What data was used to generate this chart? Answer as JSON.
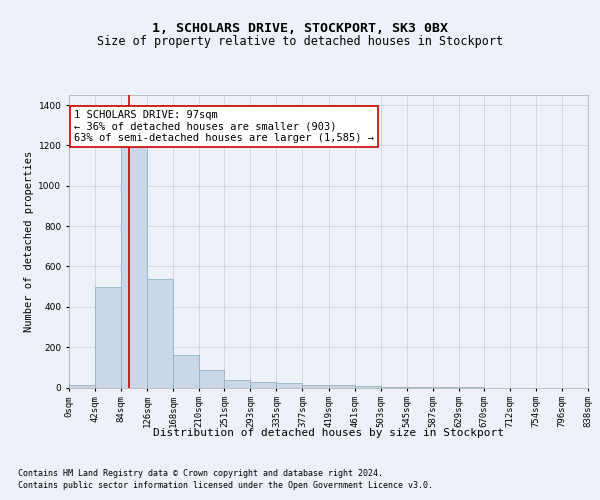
{
  "title": "1, SCHOLARS DRIVE, STOCKPORT, SK3 0BX",
  "subtitle": "Size of property relative to detached houses in Stockport",
  "xlabel": "Distribution of detached houses by size in Stockport",
  "ylabel": "Number of detached properties",
  "footnote1": "Contains HM Land Registry data © Crown copyright and database right 2024.",
  "footnote2": "Contains public sector information licensed under the Open Government Licence v3.0.",
  "annotation_line1": "1 SCHOLARS DRIVE: 97sqm",
  "annotation_line2": "← 36% of detached houses are smaller (903)",
  "annotation_line3": "63% of semi-detached houses are larger (1,585) →",
  "property_size": 97,
  "bar_left_edges": [
    0,
    42,
    84,
    126,
    168,
    210,
    251,
    293,
    335,
    377,
    419,
    461,
    503,
    545,
    587,
    629,
    670,
    712,
    754,
    796
  ],
  "bar_widths": [
    42,
    42,
    42,
    42,
    42,
    41,
    42,
    42,
    42,
    42,
    42,
    42,
    42,
    42,
    42,
    41,
    42,
    42,
    42,
    42
  ],
  "bar_heights": [
    10,
    500,
    1260,
    540,
    160,
    85,
    35,
    28,
    20,
    10,
    10,
    5,
    3,
    2,
    1,
    1,
    0,
    0,
    0,
    0
  ],
  "bar_color": "#c8d8e8",
  "bar_edge_color": "#8aa8b8",
  "red_line_x": 97,
  "red_line_color": "#cc0000",
  "ylim": [
    0,
    1450
  ],
  "yticks": [
    0,
    200,
    400,
    600,
    800,
    1000,
    1200,
    1400
  ],
  "xtick_labels": [
    "0sqm",
    "42sqm",
    "84sqm",
    "126sqm",
    "168sqm",
    "210sqm",
    "251sqm",
    "293sqm",
    "335sqm",
    "377sqm",
    "419sqm",
    "461sqm",
    "503sqm",
    "545sqm",
    "587sqm",
    "629sqm",
    "670sqm",
    "712sqm",
    "754sqm",
    "796sqm",
    "838sqm"
  ],
  "grid_color": "#ccd4e0",
  "background_color": "#eef2f8",
  "plot_bg_color": "#eef2f8",
  "title_fontsize": 9.5,
  "subtitle_fontsize": 8.5,
  "ylabel_fontsize": 7.5,
  "xlabel_fontsize": 8,
  "tick_fontsize": 6.5,
  "annotation_fontsize": 7.5,
  "footnote_fontsize": 6
}
